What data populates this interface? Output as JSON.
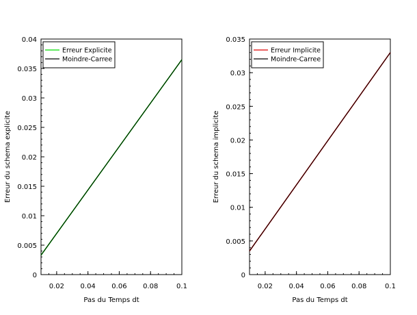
{
  "chart_data": [
    {
      "type": "line",
      "xlabel": "Pas du Temps dt",
      "ylabel": "Erreur du schema explicite",
      "xlim": [
        0.01,
        0.1
      ],
      "ylim": [
        0,
        0.04
      ],
      "xticks": [
        0.02,
        0.04,
        0.06,
        0.08,
        0.1
      ],
      "xtick_labels": [
        "0.02",
        "0.04",
        "0.06",
        "0.08",
        "0.1"
      ],
      "yticks": [
        0,
        0.005,
        0.01,
        0.015,
        0.02,
        0.025,
        0.03,
        0.035,
        0.04
      ],
      "ytick_labels": [
        "0",
        "0.005",
        "0.01",
        "0.015",
        "0.02",
        "0.025",
        "0.03",
        "0.035",
        "0.04"
      ],
      "grid": false,
      "legend_position": "top-left",
      "series": [
        {
          "name": "Erreur Explicite",
          "color": "#00dd00",
          "x": [
            0.01,
            0.1
          ],
          "y": [
            0.0033,
            0.0365
          ]
        },
        {
          "name": "Moindre-Carree",
          "color": "#000000",
          "x": [
            0.01,
            0.1
          ],
          "y": [
            0.0033,
            0.0365
          ]
        }
      ]
    },
    {
      "type": "line",
      "xlabel": "Pas du Temps dt",
      "ylabel": "Erreur du schema implicite",
      "xlim": [
        0.01,
        0.1
      ],
      "ylim": [
        0,
        0.035
      ],
      "xticks": [
        0.02,
        0.04,
        0.06,
        0.08,
        0.1
      ],
      "xtick_labels": [
        "0.02",
        "0.04",
        "0.06",
        "0.08",
        "0.1"
      ],
      "yticks": [
        0,
        0.005,
        0.01,
        0.015,
        0.02,
        0.025,
        0.03,
        0.035
      ],
      "ytick_labels": [
        "0",
        "0.005",
        "0.01",
        "0.015",
        "0.02",
        "0.025",
        "0.03",
        "0.035"
      ],
      "grid": false,
      "legend_position": "top-left",
      "series": [
        {
          "name": "Erreur Implicite",
          "color": "#dd0000",
          "x": [
            0.01,
            0.1
          ],
          "y": [
            0.0035,
            0.033
          ]
        },
        {
          "name": "Moindre-Carree",
          "color": "#000000",
          "x": [
            0.01,
            0.1
          ],
          "y": [
            0.0035,
            0.033
          ]
        }
      ]
    }
  ]
}
